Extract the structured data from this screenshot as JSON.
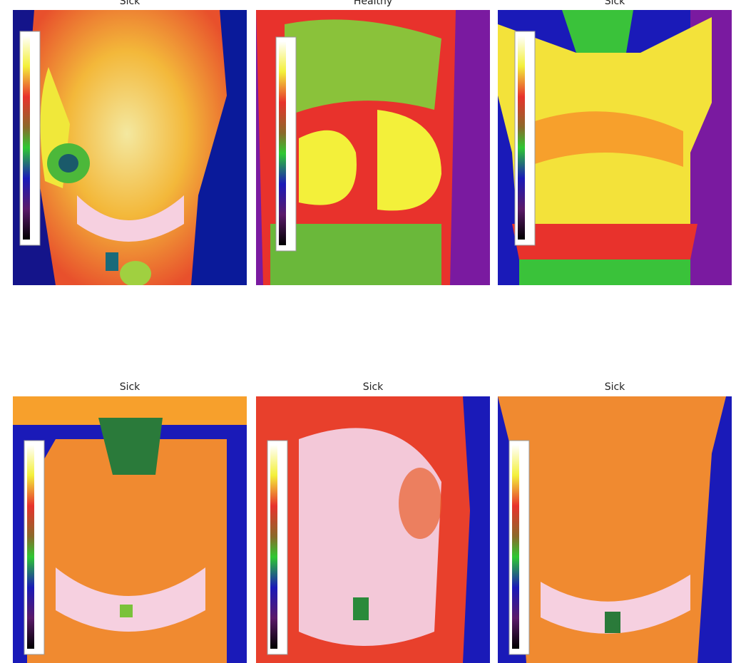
{
  "figure": {
    "panels": [
      {
        "title": "Sick"
      },
      {
        "title": "Healthy"
      },
      {
        "title": "Sick"
      },
      {
        "title": "Sick"
      },
      {
        "title": "Sick"
      },
      {
        "title": "Sick"
      }
    ]
  },
  "colors": {
    "cold_background": "#1a1ab8",
    "hot_white": "#f6d9e0",
    "yellow": "#f3f03a",
    "red": "#e8322c",
    "green": "#4cd136",
    "orange": "#f79a2c"
  },
  "icons": [
    "temperature-color-scale-icon"
  ]
}
